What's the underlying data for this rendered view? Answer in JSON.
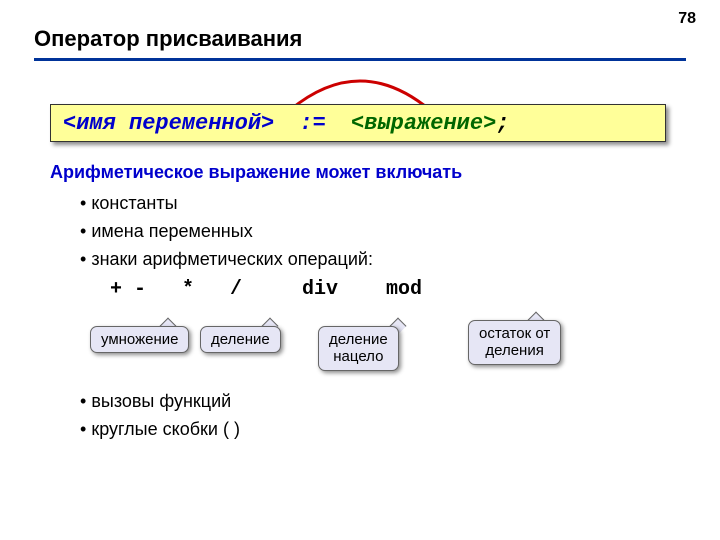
{
  "page_number": "78",
  "title": "Оператор присваивания",
  "syntax": {
    "variable": "<имя переменной>",
    "assign": " := ",
    "expression": "<выражение>",
    "semicolon": ";"
  },
  "subtitle": "Арифметическое выражение может включать",
  "bullets_top": [
    "константы",
    "имена переменных",
    "знаки арифметических операций:"
  ],
  "operators_line": "+ -   *   /     div    mod",
  "callouts": {
    "multiply": "умножение",
    "divide": "деление",
    "div": "деление\nнацело",
    "mod": "остаток от\nделения"
  },
  "bullets_bottom": [
    "вызовы функций",
    "круглые скобки ( )"
  ],
  "colors": {
    "underline": "#003399",
    "syntax_bg": "#ffff99",
    "var_color": "#0000cc",
    "expr_color": "#006600",
    "subtitle_color": "#0000cc",
    "callout_bg": "#e6e6f5",
    "arc_color": "#cc0000"
  },
  "arc": {
    "stroke_width": 3
  }
}
